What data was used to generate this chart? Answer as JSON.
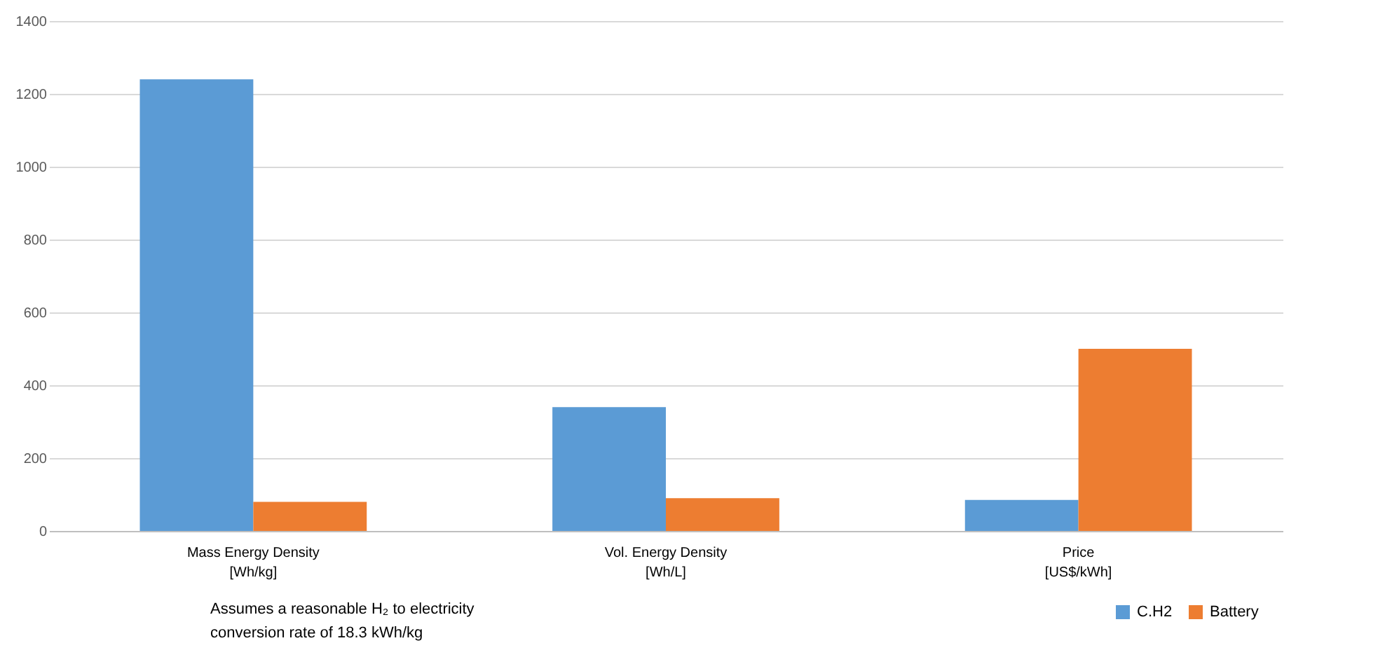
{
  "chart_data": {
    "type": "bar",
    "categories": [
      "Mass Energy Density\n[Wh/kg]",
      "Vol. Energy Density\n[Wh/L]",
      "Price\n[US$/kWh]"
    ],
    "series": [
      {
        "name": "C.H2",
        "color": "#5b9bd5",
        "values": [
          1240,
          340,
          85
        ]
      },
      {
        "name": "Battery",
        "color": "#ed7d31",
        "values": [
          80,
          90,
          500
        ]
      }
    ],
    "ylim": [
      0,
      1400
    ],
    "yticks": [
      0,
      200,
      400,
      600,
      800,
      1000,
      1200,
      1400
    ],
    "grid": "y",
    "legend": "bottom right",
    "annotations": [
      "Assumes a reasonable H₂ to electricity\nconversion rate of 18.3 kWh/kg"
    ]
  }
}
